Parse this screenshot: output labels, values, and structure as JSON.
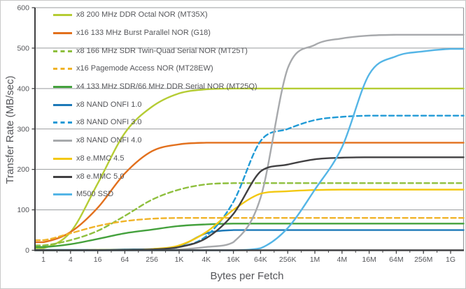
{
  "chart_data": {
    "type": "line",
    "title": "",
    "xlabel": "Bytes per Fetch",
    "ylabel": "Transfer Rate (MB/sec)",
    "x_scale": "log",
    "x_tick_labels": [
      "1",
      "4",
      "16",
      "64",
      "256",
      "1K",
      "4K",
      "16K",
      "64K",
      "256K",
      "1M",
      "4M",
      "16M",
      "64M",
      "256M",
      "1G"
    ],
    "y_ticks": [
      0,
      100,
      200,
      300,
      400,
      500,
      600
    ],
    "ylim": [
      0,
      600
    ],
    "grid": true,
    "legend_position": "upper-left-inside",
    "colors": {
      "axis_text": "#55565a",
      "gridline": "#999b9e",
      "axis_line": "#404042"
    },
    "series": [
      {
        "name": "x8 200 MHz DDR Octal NOR (MT35X)",
        "color": "#b5cc34",
        "dash": false,
        "values": [
          5,
          45,
          165,
          290,
          355,
          388,
          398,
          400,
          400,
          400,
          400,
          400,
          400,
          400,
          400,
          400
        ]
      },
      {
        "name": "x16 133 MHz Burst Parallel NOR (G18)",
        "color": "#e2701d",
        "dash": false,
        "values": [
          20,
          45,
          105,
          190,
          245,
          262,
          266,
          266,
          266,
          266,
          266,
          266,
          266,
          266,
          266,
          266
        ]
      },
      {
        "name": "x8 166 MHz SDR Twin-Quad Serial NOR (MT25T)",
        "color": "#8ebf3d",
        "dash": true,
        "values": [
          12,
          25,
          48,
          85,
          125,
          150,
          163,
          166,
          166,
          166,
          166,
          166,
          166,
          166,
          166,
          166
        ]
      },
      {
        "name": "x16 Pagemode Access  NOR (MT28EW)",
        "color": "#f0b328",
        "dash": true,
        "values": [
          25,
          42,
          60,
          72,
          78,
          80,
          80,
          80,
          80,
          80,
          80,
          80,
          80,
          80,
          80,
          80
        ]
      },
      {
        "name": "x4 133 MHz SDR/66 MHz DDR Serial NOR (MT25Q)",
        "color": "#44a13d",
        "dash": false,
        "values": [
          8,
          15,
          28,
          42,
          51,
          60,
          64,
          66,
          66,
          66,
          66,
          66,
          66,
          66,
          66,
          66
        ]
      },
      {
        "name": "x8 NAND ONFI 1.0",
        "color": "#1d79b8",
        "dash": false,
        "values": [
          1,
          1,
          1,
          2,
          3,
          10,
          42,
          50,
          50,
          50,
          50,
          50,
          50,
          50,
          50,
          50
        ]
      },
      {
        "name": "x8 NAND ONFI 3.0",
        "color": "#209ad6",
        "dash": true,
        "values": [
          0,
          0,
          1,
          1,
          2,
          8,
          35,
          120,
          270,
          300,
          322,
          330,
          333,
          333,
          333,
          333
        ]
      },
      {
        "name": "x8 NAND ONFI 4.0",
        "color": "#a7a9ac",
        "dash": false,
        "values": [
          0,
          0,
          0,
          0,
          1,
          2,
          8,
          20,
          130,
          450,
          508,
          524,
          531,
          533,
          533,
          533
        ]
      },
      {
        "name": "x8 e.MMC 4.5",
        "color": "#f3c811",
        "dash": false,
        "values": [
          0,
          0,
          1,
          1,
          3,
          12,
          45,
          100,
          140,
          146,
          149,
          150,
          150,
          150,
          150,
          150
        ]
      },
      {
        "name": "x8 e.MMC 5.0",
        "color": "#414042",
        "dash": false,
        "values": [
          0,
          0,
          0,
          1,
          2,
          8,
          30,
          90,
          195,
          212,
          225,
          229,
          230,
          230,
          230,
          230
        ]
      },
      {
        "name": "M500 SSD",
        "color": "#54b5e6",
        "dash": false,
        "values": [
          0,
          0,
          0,
          0,
          0,
          0,
          0,
          0,
          5,
          55,
          150,
          255,
          435,
          480,
          492,
          498
        ]
      }
    ]
  }
}
